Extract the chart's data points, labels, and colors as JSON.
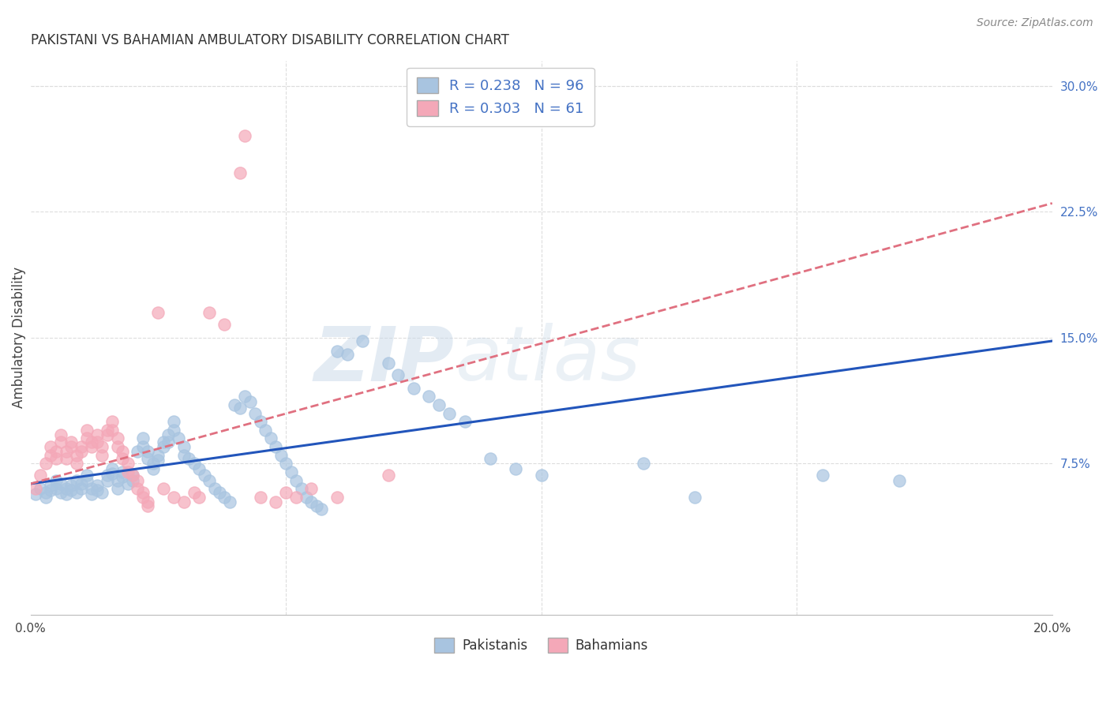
{
  "title": "PAKISTANI VS BAHAMIAN AMBULATORY DISABILITY CORRELATION CHART",
  "source": "Source: ZipAtlas.com",
  "ylabel": "Ambulatory Disability",
  "xlim": [
    0.0,
    0.2
  ],
  "ylim": [
    -0.015,
    0.315
  ],
  "pakistani_color": "#a8c4e0",
  "bahamian_color": "#f4a8b8",
  "pakistani_line_color": "#2255bb",
  "bahamian_line_color": "#e07080",
  "R_pakistani": 0.238,
  "N_pakistani": 96,
  "R_bahamian": 0.303,
  "N_bahamian": 61,
  "pakistani_scatter": [
    [
      0.001,
      0.057
    ],
    [
      0.002,
      0.06
    ],
    [
      0.003,
      0.055
    ],
    [
      0.003,
      0.058
    ],
    [
      0.004,
      0.062
    ],
    [
      0.004,
      0.059
    ],
    [
      0.005,
      0.065
    ],
    [
      0.005,
      0.06
    ],
    [
      0.006,
      0.058
    ],
    [
      0.006,
      0.063
    ],
    [
      0.007,
      0.06
    ],
    [
      0.007,
      0.057
    ],
    [
      0.008,
      0.062
    ],
    [
      0.008,
      0.059
    ],
    [
      0.009,
      0.065
    ],
    [
      0.009,
      0.058
    ],
    [
      0.01,
      0.063
    ],
    [
      0.01,
      0.06
    ],
    [
      0.011,
      0.068
    ],
    [
      0.011,
      0.065
    ],
    [
      0.012,
      0.06
    ],
    [
      0.012,
      0.057
    ],
    [
      0.013,
      0.062
    ],
    [
      0.013,
      0.059
    ],
    [
      0.014,
      0.058
    ],
    [
      0.015,
      0.068
    ],
    [
      0.015,
      0.065
    ],
    [
      0.016,
      0.072
    ],
    [
      0.016,
      0.069
    ],
    [
      0.017,
      0.065
    ],
    [
      0.017,
      0.06
    ],
    [
      0.018,
      0.07
    ],
    [
      0.018,
      0.067
    ],
    [
      0.019,
      0.063
    ],
    [
      0.02,
      0.068
    ],
    [
      0.02,
      0.065
    ],
    [
      0.021,
      0.082
    ],
    [
      0.022,
      0.085
    ],
    [
      0.022,
      0.09
    ],
    [
      0.023,
      0.078
    ],
    [
      0.023,
      0.082
    ],
    [
      0.024,
      0.075
    ],
    [
      0.024,
      0.072
    ],
    [
      0.025,
      0.08
    ],
    [
      0.025,
      0.077
    ],
    [
      0.026,
      0.085
    ],
    [
      0.026,
      0.088
    ],
    [
      0.027,
      0.092
    ],
    [
      0.027,
      0.088
    ],
    [
      0.028,
      0.095
    ],
    [
      0.028,
      0.1
    ],
    [
      0.029,
      0.09
    ],
    [
      0.03,
      0.085
    ],
    [
      0.03,
      0.08
    ],
    [
      0.031,
      0.078
    ],
    [
      0.032,
      0.075
    ],
    [
      0.033,
      0.072
    ],
    [
      0.034,
      0.068
    ],
    [
      0.035,
      0.065
    ],
    [
      0.036,
      0.06
    ],
    [
      0.037,
      0.058
    ],
    [
      0.038,
      0.055
    ],
    [
      0.039,
      0.052
    ],
    [
      0.04,
      0.11
    ],
    [
      0.041,
      0.108
    ],
    [
      0.042,
      0.115
    ],
    [
      0.043,
      0.112
    ],
    [
      0.044,
      0.105
    ],
    [
      0.045,
      0.1
    ],
    [
      0.046,
      0.095
    ],
    [
      0.047,
      0.09
    ],
    [
      0.048,
      0.085
    ],
    [
      0.049,
      0.08
    ],
    [
      0.05,
      0.075
    ],
    [
      0.051,
      0.07
    ],
    [
      0.052,
      0.065
    ],
    [
      0.053,
      0.06
    ],
    [
      0.054,
      0.055
    ],
    [
      0.055,
      0.052
    ],
    [
      0.056,
      0.05
    ],
    [
      0.057,
      0.048
    ],
    [
      0.06,
      0.142
    ],
    [
      0.062,
      0.14
    ],
    [
      0.065,
      0.148
    ],
    [
      0.07,
      0.135
    ],
    [
      0.072,
      0.128
    ],
    [
      0.075,
      0.12
    ],
    [
      0.078,
      0.115
    ],
    [
      0.08,
      0.11
    ],
    [
      0.082,
      0.105
    ],
    [
      0.085,
      0.1
    ],
    [
      0.09,
      0.078
    ],
    [
      0.095,
      0.072
    ],
    [
      0.1,
      0.068
    ],
    [
      0.12,
      0.075
    ],
    [
      0.13,
      0.055
    ],
    [
      0.155,
      0.068
    ],
    [
      0.17,
      0.065
    ]
  ],
  "bahamian_scatter": [
    [
      0.001,
      0.06
    ],
    [
      0.002,
      0.068
    ],
    [
      0.003,
      0.075
    ],
    [
      0.004,
      0.08
    ],
    [
      0.004,
      0.085
    ],
    [
      0.005,
      0.078
    ],
    [
      0.005,
      0.082
    ],
    [
      0.006,
      0.088
    ],
    [
      0.006,
      0.092
    ],
    [
      0.007,
      0.078
    ],
    [
      0.007,
      0.082
    ],
    [
      0.008,
      0.085
    ],
    [
      0.008,
      0.088
    ],
    [
      0.009,
      0.075
    ],
    [
      0.009,
      0.08
    ],
    [
      0.01,
      0.085
    ],
    [
      0.01,
      0.082
    ],
    [
      0.011,
      0.09
    ],
    [
      0.011,
      0.095
    ],
    [
      0.012,
      0.088
    ],
    [
      0.012,
      0.085
    ],
    [
      0.013,
      0.092
    ],
    [
      0.013,
      0.088
    ],
    [
      0.014,
      0.085
    ],
    [
      0.014,
      0.08
    ],
    [
      0.015,
      0.095
    ],
    [
      0.015,
      0.092
    ],
    [
      0.016,
      0.1
    ],
    [
      0.016,
      0.095
    ],
    [
      0.017,
      0.09
    ],
    [
      0.017,
      0.085
    ],
    [
      0.018,
      0.082
    ],
    [
      0.018,
      0.078
    ],
    [
      0.019,
      0.075
    ],
    [
      0.019,
      0.07
    ],
    [
      0.02,
      0.068
    ],
    [
      0.021,
      0.065
    ],
    [
      0.021,
      0.06
    ],
    [
      0.022,
      0.058
    ],
    [
      0.022,
      0.055
    ],
    [
      0.023,
      0.052
    ],
    [
      0.023,
      0.05
    ],
    [
      0.025,
      0.165
    ],
    [
      0.026,
      0.06
    ],
    [
      0.028,
      0.055
    ],
    [
      0.03,
      0.052
    ],
    [
      0.032,
      0.058
    ],
    [
      0.033,
      0.055
    ],
    [
      0.035,
      0.165
    ],
    [
      0.038,
      0.158
    ],
    [
      0.041,
      0.248
    ],
    [
      0.042,
      0.27
    ],
    [
      0.045,
      0.055
    ],
    [
      0.048,
      0.052
    ],
    [
      0.05,
      0.058
    ],
    [
      0.052,
      0.055
    ],
    [
      0.055,
      0.06
    ],
    [
      0.06,
      0.055
    ],
    [
      0.07,
      0.068
    ]
  ],
  "watermark_zip": "ZIP",
  "watermark_atlas": "atlas",
  "background_color": "#ffffff",
  "grid_color": "#dddddd"
}
